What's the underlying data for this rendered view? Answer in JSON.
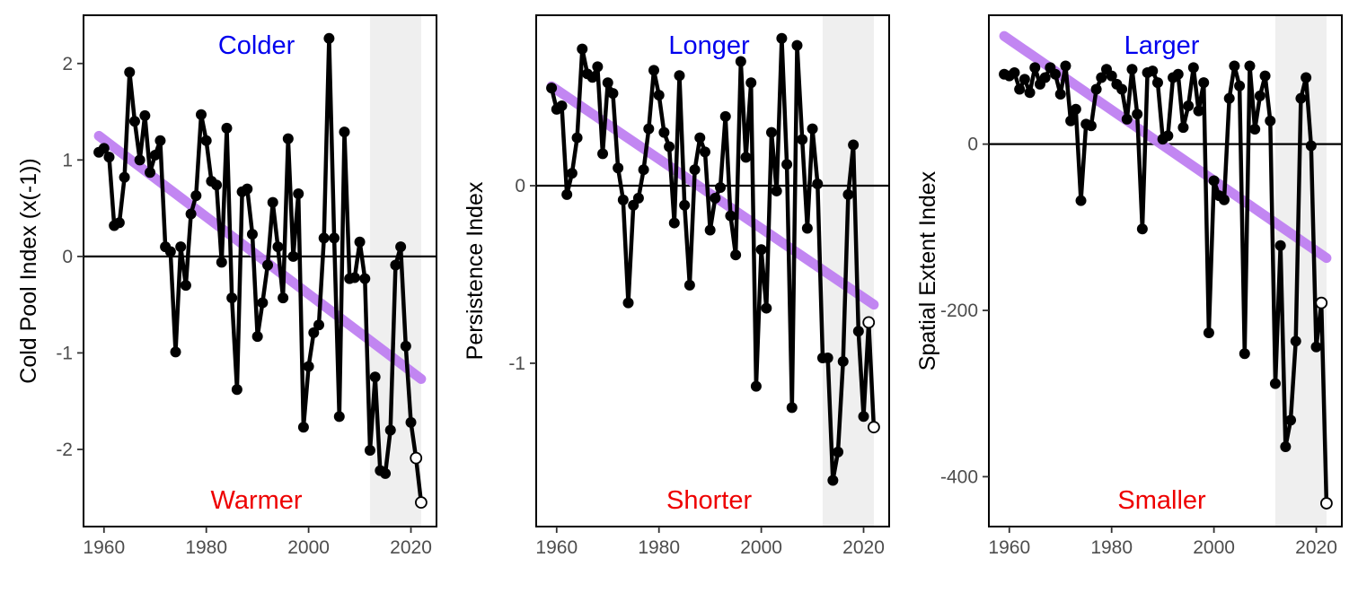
{
  "colors": {
    "line": "#000000",
    "trend": "#bf80f2",
    "shade": "#efefef",
    "annot_top": "#0000ee",
    "annot_bottom": "#ee0000"
  },
  "chart_data": [
    {
      "type": "line",
      "ylabel": "Cold Pool Index (x(-1))",
      "annotation_top": "Colder",
      "annotation_bottom": "Warmer",
      "xlim": [
        1956,
        2025
      ],
      "ylim": [
        -2.8,
        2.5
      ],
      "xticks": [
        1960,
        1980,
        2000,
        2020
      ],
      "yticks": [
        -2,
        -1,
        0,
        1,
        2
      ],
      "yticklabels": [
        "-2",
        "-1",
        "0",
        "1",
        "2"
      ],
      "shade_range": [
        2012,
        2022
      ],
      "trend": {
        "x": [
          1959,
          2022
        ],
        "y": [
          1.25,
          -1.27
        ]
      },
      "hollow_points": [
        2021,
        2022
      ],
      "x": [
        1959,
        1960,
        1961,
        1962,
        1963,
        1964,
        1965,
        1966,
        1967,
        1968,
        1969,
        1970,
        1971,
        1972,
        1973,
        1974,
        1975,
        1976,
        1977,
        1978,
        1979,
        1980,
        1981,
        1982,
        1983,
        1984,
        1985,
        1986,
        1987,
        1988,
        1989,
        1990,
        1991,
        1992,
        1993,
        1994,
        1995,
        1996,
        1997,
        1998,
        1999,
        2000,
        2001,
        2002,
        2003,
        2004,
        2005,
        2006,
        2007,
        2008,
        2009,
        2010,
        2011,
        2012,
        2013,
        2014,
        2015,
        2016,
        2017,
        2018,
        2019,
        2020,
        2021,
        2022
      ],
      "y": [
        1.08,
        1.12,
        1.03,
        0.32,
        0.35,
        0.82,
        1.91,
        1.4,
        1.0,
        1.46,
        0.87,
        1.05,
        1.2,
        0.1,
        0.05,
        -0.99,
        0.1,
        -0.3,
        0.44,
        0.63,
        1.47,
        1.2,
        0.78,
        0.74,
        -0.06,
        1.33,
        -0.43,
        -1.38,
        0.67,
        0.7,
        0.23,
        -0.83,
        -0.48,
        -0.09,
        0.56,
        0.1,
        -0.43,
        1.22,
        0.0,
        0.65,
        -1.77,
        -1.14,
        -0.79,
        -0.71,
        0.19,
        2.26,
        0.19,
        -1.66,
        1.29,
        -0.23,
        -0.22,
        0.15,
        -0.23,
        -2.01,
        -1.25,
        -2.22,
        -2.25,
        -1.8,
        -0.09,
        0.1,
        -0.93,
        -1.72,
        -2.09,
        -2.55
      ]
    },
    {
      "type": "line",
      "ylabel": "Persistence Index",
      "annotation_top": "Longer",
      "annotation_bottom": "Shorter",
      "xlim": [
        1956,
        2025
      ],
      "ylim": [
        -1.92,
        0.96
      ],
      "xticks": [
        1960,
        1980,
        2000,
        2020
      ],
      "yticks": [
        -1,
        0
      ],
      "yticklabels": [
        "-1",
        "0"
      ],
      "shade_range": [
        2012,
        2022
      ],
      "trend": {
        "x": [
          1959,
          2022
        ],
        "y": [
          0.56,
          -0.67
        ]
      },
      "hollow_points": [
        2021,
        2022
      ],
      "x": [
        1959,
        1960,
        1961,
        1962,
        1963,
        1964,
        1965,
        1966,
        1967,
        1968,
        1969,
        1970,
        1971,
        1972,
        1973,
        1974,
        1975,
        1976,
        1977,
        1978,
        1979,
        1980,
        1981,
        1982,
        1983,
        1984,
        1985,
        1986,
        1987,
        1988,
        1989,
        1990,
        1991,
        1992,
        1993,
        1994,
        1995,
        1996,
        1997,
        1998,
        1999,
        2000,
        2001,
        2002,
        2003,
        2004,
        2005,
        2006,
        2007,
        2008,
        2009,
        2010,
        2011,
        2012,
        2013,
        2014,
        2015,
        2016,
        2017,
        2018,
        2019,
        2020,
        2021,
        2022
      ],
      "y": [
        0.55,
        0.43,
        0.45,
        -0.05,
        0.07,
        0.27,
        0.77,
        0.63,
        0.61,
        0.67,
        0.18,
        0.58,
        0.52,
        0.1,
        -0.08,
        -0.66,
        -0.11,
        -0.07,
        0.09,
        0.32,
        0.65,
        0.51,
        0.3,
        0.22,
        -0.21,
        0.62,
        -0.11,
        -0.56,
        0.09,
        0.27,
        0.19,
        -0.25,
        -0.07,
        -0.01,
        0.39,
        -0.17,
        -0.39,
        0.7,
        0.16,
        0.58,
        -1.13,
        -0.36,
        -0.69,
        0.3,
        -0.03,
        0.83,
        0.12,
        -1.25,
        0.79,
        0.26,
        -0.24,
        0.32,
        0.01,
        -0.97,
        -0.97,
        -1.66,
        -1.5,
        -0.99,
        -0.05,
        0.23,
        -0.82,
        -1.3,
        -0.77,
        -1.36
      ]
    },
    {
      "type": "line",
      "ylabel": "Spatial Extent Index",
      "annotation_top": "Larger",
      "annotation_bottom": "Smaller",
      "xlim": [
        1956,
        2025
      ],
      "ylim": [
        -460,
        155
      ],
      "xticks": [
        1960,
        1980,
        2000,
        2020
      ],
      "yticks": [
        -400,
        -200,
        0
      ],
      "yticklabels": [
        "-400",
        "-200",
        "0"
      ],
      "shade_range": [
        2012,
        2022
      ],
      "trend": {
        "x": [
          1959,
          2022
        ],
        "y": [
          130,
          -137
        ]
      },
      "hollow_points": [
        2021,
        2022
      ],
      "x": [
        1959,
        1960,
        1961,
        1962,
        1963,
        1964,
        1965,
        1966,
        1967,
        1968,
        1969,
        1970,
        1971,
        1972,
        1973,
        1974,
        1975,
        1976,
        1977,
        1978,
        1979,
        1980,
        1981,
        1982,
        1983,
        1984,
        1985,
        1986,
        1987,
        1988,
        1989,
        1990,
        1991,
        1992,
        1993,
        1994,
        1995,
        1996,
        1997,
        1998,
        1999,
        2000,
        2001,
        2002,
        2003,
        2004,
        2005,
        2006,
        2007,
        2008,
        2009,
        2010,
        2011,
        2012,
        2013,
        2014,
        2015,
        2016,
        2017,
        2018,
        2019,
        2020,
        2021,
        2022
      ],
      "y": [
        84,
        82,
        86,
        66,
        78,
        62,
        92,
        72,
        80,
        92,
        84,
        60,
        94,
        28,
        42,
        -68,
        24,
        22,
        66,
        80,
        90,
        82,
        72,
        66,
        30,
        90,
        36,
        -102,
        86,
        88,
        74,
        6,
        10,
        80,
        84,
        20,
        46,
        92,
        40,
        74,
        -227,
        -44,
        -62,
        -67,
        55,
        94,
        70,
        -252,
        94,
        18,
        58,
        82,
        28,
        -288,
        -122,
        -364,
        -332,
        -237,
        55,
        80,
        -2,
        -244,
        -191,
        -432
      ]
    }
  ]
}
